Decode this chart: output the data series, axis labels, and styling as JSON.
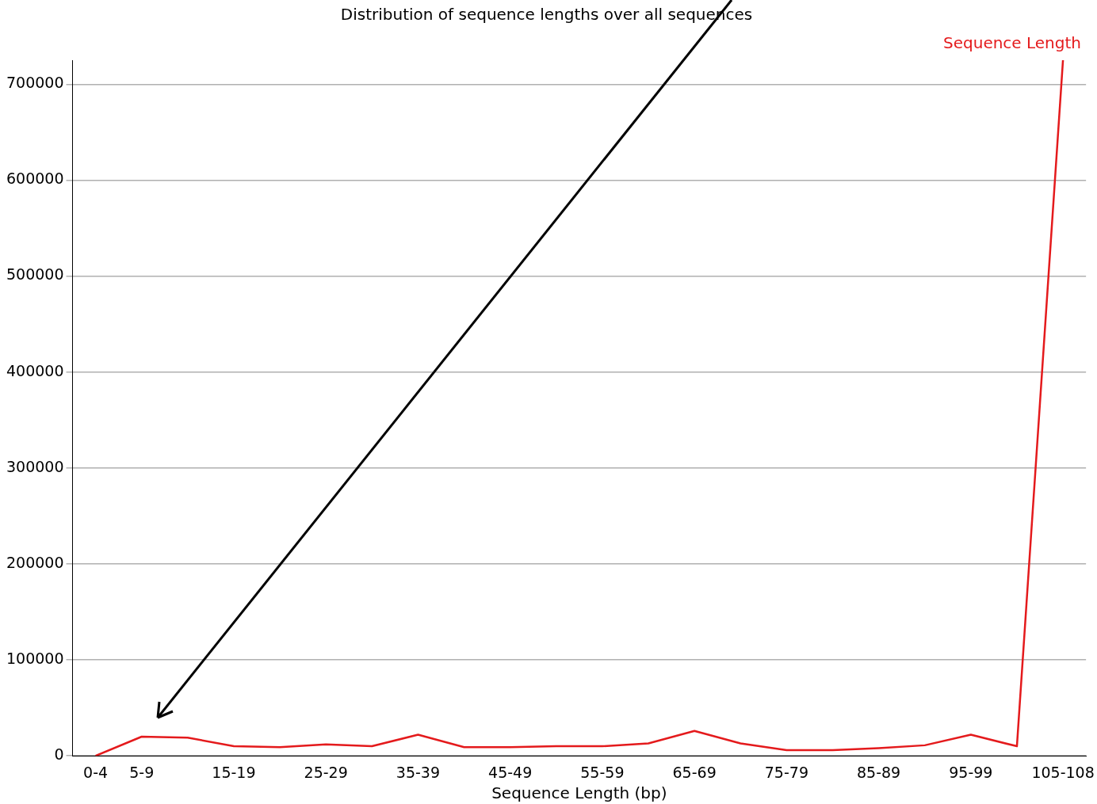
{
  "chart_data": {
    "type": "line",
    "title": "Distribution of sequence lengths over all sequences",
    "xlabel": "Sequence Length (bp)",
    "categories": [
      "0-4",
      "5-9",
      null,
      "15-19",
      null,
      "25-29",
      null,
      "35-39",
      null,
      "45-49",
      null,
      "55-59",
      null,
      "65-69",
      null,
      "75-79",
      null,
      "85-89",
      null,
      "95-99",
      null,
      "105-108"
    ],
    "series": [
      {
        "name": "Sequence Length",
        "color": "#e41a1c",
        "values": [
          0,
          20000,
          19000,
          10000,
          9000,
          12000,
          10000,
          22000,
          9000,
          9000,
          10000,
          10000,
          13000,
          26000,
          13000,
          6000,
          6000,
          8000,
          11000,
          22000,
          10000,
          725000
        ]
      }
    ],
    "ylim": [
      0,
      725000
    ],
    "yticks": [
      0,
      100000,
      200000,
      300000,
      400000,
      500000,
      600000,
      700000
    ],
    "grid": "y",
    "legend": "top right",
    "marker": "none",
    "line_style": "solid"
  }
}
